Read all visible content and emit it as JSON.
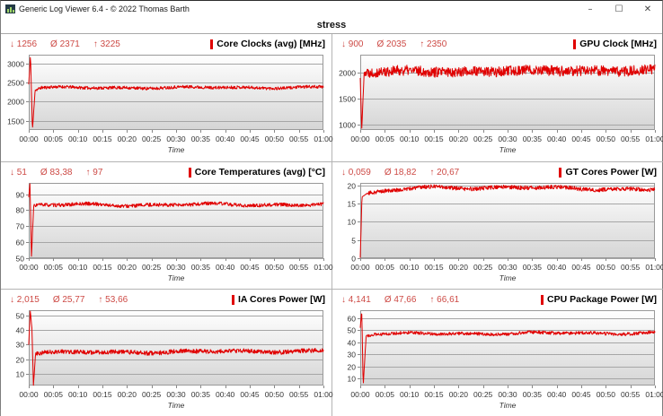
{
  "window": {
    "title": "Generic Log Viewer 6.4 - © 2022 Thomas Barth",
    "controls": {
      "minimize": "–",
      "maximize": "☐",
      "close": "✕"
    }
  },
  "tab": {
    "label": "stress"
  },
  "colors": {
    "line": "#e00000",
    "stats_text": "#cd4a45",
    "title_mark": "#e00000",
    "grid_line": "#a6a6a6",
    "plot_border": "#999999",
    "plot_grad_top": "#ffffff",
    "plot_grad_bottom": "#d5d5d5",
    "divider": "#b4b4b4",
    "tick": "#888888",
    "axis_text": "#333333"
  },
  "time_axis": {
    "labels": [
      "00:00",
      "00:05",
      "00:10",
      "00:15",
      "00:20",
      "00:25",
      "00:30",
      "00:35",
      "00:40",
      "00:45",
      "00:50",
      "00:55",
      "01:00"
    ],
    "xlabel": "Time",
    "x_range_min": [
      0,
      60
    ]
  },
  "chart_data": [
    {
      "id": "core-clocks",
      "type": "line",
      "title": "Core Clocks (avg) [MHz]",
      "min": "1256",
      "avg": "2371",
      "max": "3225",
      "min_label": "↓",
      "avg_label": "Ø",
      "max_label": "↑",
      "yticks": [
        1500,
        2000,
        2500,
        3000
      ],
      "ylim": [
        1256,
        3225
      ],
      "keypoints": [
        [
          0,
          2450
        ],
        [
          0.35,
          3225
        ],
        [
          0.75,
          1256
        ],
        [
          1.3,
          2300
        ],
        [
          2.5,
          2360
        ],
        [
          60,
          2370
        ]
      ],
      "noise": 40,
      "wave": 25,
      "noise_start": 1.4,
      "seed": 11
    },
    {
      "id": "gpu-clock",
      "type": "line",
      "title": "GPU Clock [MHz]",
      "min": "900",
      "avg": "2035",
      "max": "2350",
      "min_label": "↓",
      "avg_label": "Ø",
      "max_label": "↑",
      "yticks": [
        1000,
        1500,
        2000
      ],
      "ylim": [
        900,
        2350
      ],
      "keypoints": [
        [
          0,
          1900
        ],
        [
          0.3,
          900
        ],
        [
          0.8,
          2020
        ],
        [
          60,
          2050
        ]
      ],
      "noise": 100,
      "wave": 25,
      "noise_start": 0.9,
      "seed": 22
    },
    {
      "id": "core-temps",
      "type": "line",
      "title": "Core Temperatures (avg) [°C]",
      "min": "51",
      "avg": "83,38",
      "max": "97",
      "min_label": "↓",
      "avg_label": "Ø",
      "max_label": "↑",
      "yticks": [
        50,
        60,
        70,
        80,
        90
      ],
      "ylim": [
        50,
        97
      ],
      "keypoints": [
        [
          0,
          88
        ],
        [
          0.25,
          97
        ],
        [
          0.55,
          51
        ],
        [
          1.0,
          82.5
        ],
        [
          2,
          83.2
        ],
        [
          60,
          83.5
        ]
      ],
      "noise": 1.1,
      "wave": 0.9,
      "noise_start": 1.1,
      "seed": 33
    },
    {
      "id": "gt-power",
      "type": "line",
      "title": "GT Cores Power [W]",
      "min": "0,059",
      "avg": "18,82",
      "max": "20,67",
      "min_label": "↓",
      "avg_label": "Ø",
      "max_label": "↑",
      "yticks": [
        0,
        5,
        10,
        15,
        20
      ],
      "ylim": [
        0,
        20.67
      ],
      "keypoints": [
        [
          0,
          0.059
        ],
        [
          0.35,
          16.8
        ],
        [
          1.2,
          17.6
        ],
        [
          6,
          18.4
        ],
        [
          12,
          19.4
        ],
        [
          30,
          19.4
        ],
        [
          60,
          18.9
        ]
      ],
      "noise": 0.55,
      "wave": 0.4,
      "noise_start": 1.3,
      "seed": 44
    },
    {
      "id": "ia-power",
      "type": "line",
      "title": "IA Cores Power [W]",
      "min": "2,015",
      "avg": "25,77",
      "max": "53,66",
      "min_label": "↓",
      "avg_label": "Ø",
      "max_label": "↑",
      "yticks": [
        10,
        20,
        30,
        40,
        50
      ],
      "ylim": [
        2.015,
        53.66
      ],
      "keypoints": [
        [
          0,
          30
        ],
        [
          0.3,
          53.66
        ],
        [
          0.65,
          41
        ],
        [
          0.95,
          2.015
        ],
        [
          1.4,
          24.5
        ],
        [
          60,
          25.8
        ]
      ],
      "noise": 1.5,
      "wave": 0.8,
      "noise_start": 1.5,
      "seed": 55
    },
    {
      "id": "cpu-package-power",
      "type": "line",
      "title": "CPU Package Power [W]",
      "min": "4,141",
      "avg": "47,66",
      "max": "66,61",
      "min_label": "↓",
      "avg_label": "Ø",
      "max_label": "↑",
      "yticks": [
        10,
        20,
        30,
        40,
        50,
        60
      ],
      "ylim": [
        4.141,
        66.61
      ],
      "keypoints": [
        [
          0,
          52
        ],
        [
          0.3,
          66.61
        ],
        [
          0.6,
          4.141
        ],
        [
          1.2,
          45.5
        ],
        [
          2.5,
          47
        ],
        [
          60,
          47.8
        ]
      ],
      "noise": 1.3,
      "wave": 1.0,
      "noise_start": 1.4,
      "seed": 66
    }
  ]
}
